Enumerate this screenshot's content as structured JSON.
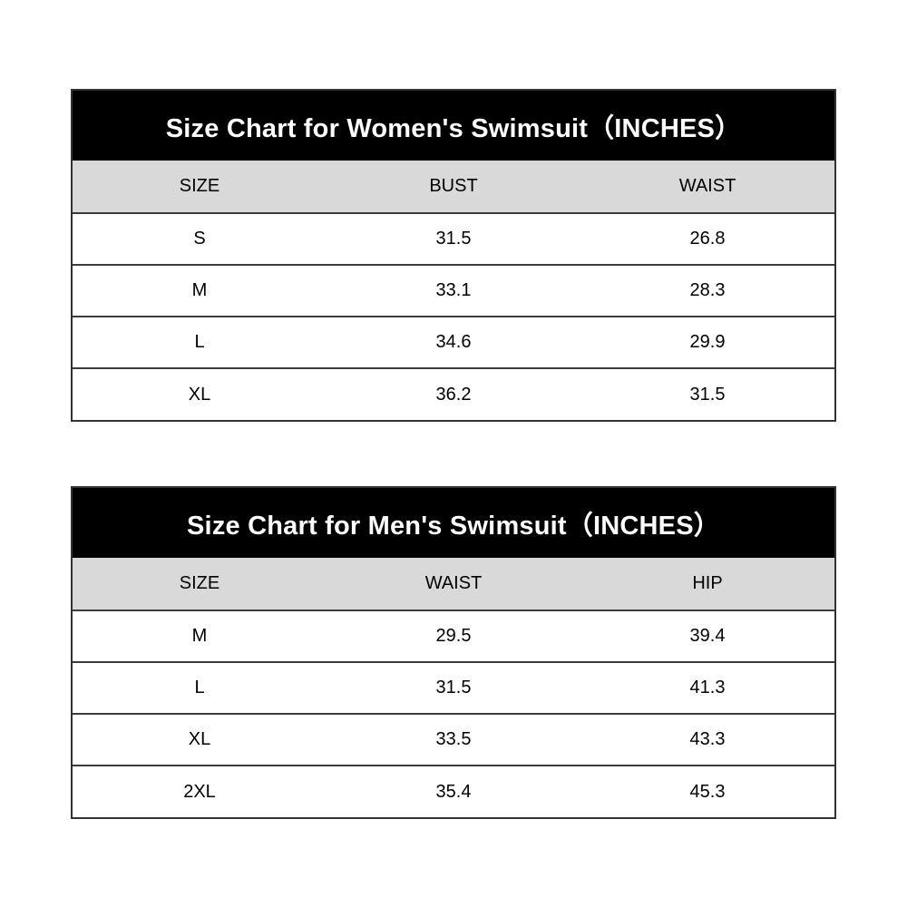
{
  "page": {
    "background": "#ffffff"
  },
  "colors": {
    "title_bg": "#000000",
    "title_text": "#ffffff",
    "header_bg": "#d9d9d9",
    "border": "#3b3b3b",
    "body_text": "#000000"
  },
  "tables": [
    {
      "title": "Size Chart for Women's Swimsuit（INCHES）",
      "columns": [
        "SIZE",
        "BUST",
        "WAIST"
      ],
      "rows": [
        [
          "S",
          "31.5",
          "26.8"
        ],
        [
          "M",
          "33.1",
          "28.3"
        ],
        [
          "L",
          "34.6",
          "29.9"
        ],
        [
          "XL",
          "36.2",
          "31.5"
        ]
      ]
    },
    {
      "title": "Size Chart for Men's Swimsuit（INCHES）",
      "columns": [
        "SIZE",
        "WAIST",
        "HIP"
      ],
      "rows": [
        [
          "M",
          "29.5",
          "39.4"
        ],
        [
          "L",
          "31.5",
          "41.3"
        ],
        [
          "XL",
          "33.5",
          "43.3"
        ],
        [
          "2XL",
          "35.4",
          "45.3"
        ]
      ]
    }
  ]
}
